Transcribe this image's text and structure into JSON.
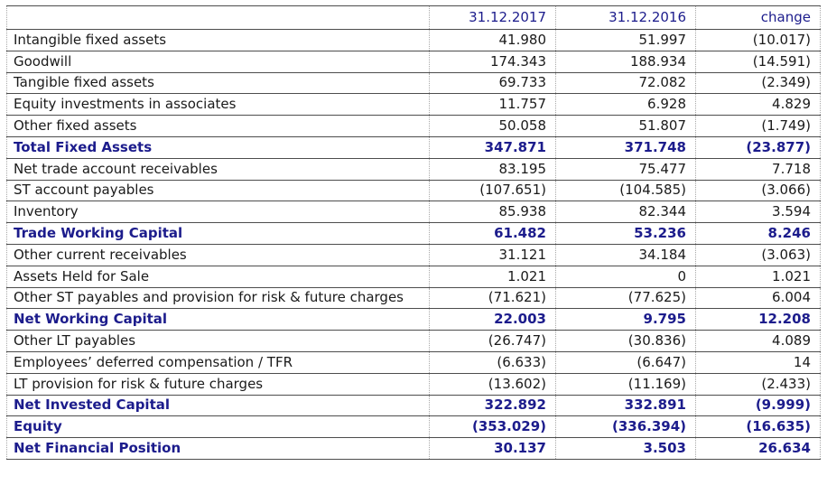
{
  "document": {
    "kind": "financial-position-table"
  },
  "colors": {
    "accent_navy": "#1c1c8c",
    "text_black": "#1a1a1a",
    "grid_line_dark": "#4d4d4d",
    "grid_line_dotted": "#a8a8a8",
    "background": "#ffffff"
  },
  "table": {
    "columns": [
      {
        "label": ""
      },
      {
        "label": "31.12.2017"
      },
      {
        "label": "31.12.2016"
      },
      {
        "label": "change"
      }
    ],
    "rows": [
      {
        "label": "Intangible fixed assets",
        "v2017": "41.980",
        "v2016": "51.997",
        "change": "(10.017)",
        "bold": false
      },
      {
        "label": "Goodwill",
        "v2017": "174.343",
        "v2016": "188.934",
        "change": "(14.591)",
        "bold": false
      },
      {
        "label": "Tangible fixed assets",
        "v2017": "69.733",
        "v2016": "72.082",
        "change": "(2.349)",
        "bold": false
      },
      {
        "label": "Equity investments in associates",
        "v2017": "11.757",
        "v2016": "6.928",
        "change": "4.829",
        "bold": false
      },
      {
        "label": "Other fixed assets",
        "v2017": "50.058",
        "v2016": "51.807",
        "change": "(1.749)",
        "bold": false
      },
      {
        "label": "Total Fixed Assets",
        "v2017": "347.871",
        "v2016": "371.748",
        "change": "(23.877)",
        "bold": true
      },
      {
        "label": "Net trade account receivables",
        "v2017": "83.195",
        "v2016": "75.477",
        "change": "7.718",
        "bold": false
      },
      {
        "label": "ST account payables",
        "v2017": "(107.651)",
        "v2016": "(104.585)",
        "change": "(3.066)",
        "bold": false
      },
      {
        "label": "Inventory",
        "v2017": "85.938",
        "v2016": "82.344",
        "change": "3.594",
        "bold": false
      },
      {
        "label": "Trade Working Capital",
        "v2017": "61.482",
        "v2016": "53.236",
        "change": "8.246",
        "bold": true
      },
      {
        "label": "Other current receivables",
        "v2017": "31.121",
        "v2016": "34.184",
        "change": "(3.063)",
        "bold": false
      },
      {
        "label": "Assets Held for Sale",
        "v2017": "1.021",
        "v2016": "0",
        "change": "1.021",
        "bold": false
      },
      {
        "label": "Other ST payables and provision for risk & future charges",
        "v2017": "(71.621)",
        "v2016": "(77.625)",
        "change": "6.004",
        "bold": false
      },
      {
        "label": "Net Working Capital",
        "v2017": "22.003",
        "v2016": "9.795",
        "change": "12.208",
        "bold": true
      },
      {
        "label": "Other LT payables",
        "v2017": "(26.747)",
        "v2016": "(30.836)",
        "change": "4.089",
        "bold": false
      },
      {
        "label": "Employees’ deferred compensation / TFR",
        "v2017": "(6.633)",
        "v2016": "(6.647)",
        "change": "14",
        "bold": false
      },
      {
        "label": "LT provision for risk & future charges",
        "v2017": "(13.602)",
        "v2016": "(11.169)",
        "change": "(2.433)",
        "bold": false
      },
      {
        "label": "Net Invested Capital",
        "v2017": "322.892",
        "v2016": "332.891",
        "change": "(9.999)",
        "bold": true
      },
      {
        "label": "Equity",
        "v2017": "(353.029)",
        "v2016": "(336.394)",
        "change": "(16.635)",
        "bold": true
      },
      {
        "label": "Net Financial Position",
        "v2017": "30.137",
        "v2016": "3.503",
        "change": "26.634",
        "bold": true
      }
    ]
  }
}
